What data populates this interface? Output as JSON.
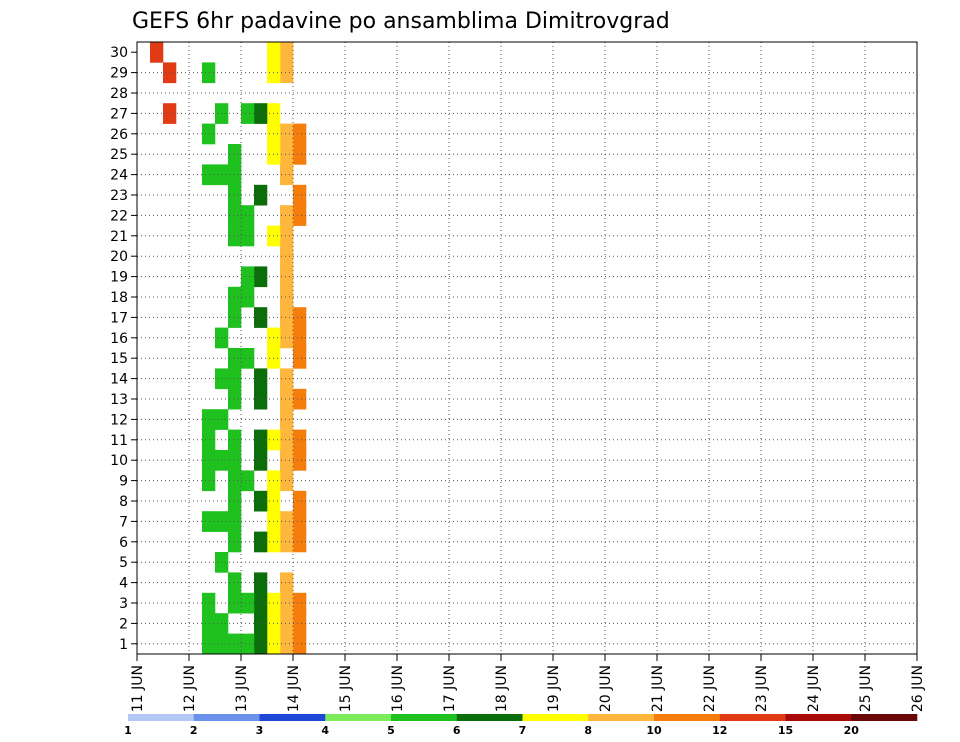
{
  "chart_data": {
    "type": "heatmap",
    "title": "GEFS 6hr padavine po ansamblima Dimitrovgrad",
    "xlabel": "",
    "ylabel": "",
    "x_ticks": [
      "11 JUN",
      "12 JUN",
      "13 JUN",
      "14 JUN",
      "15 JUN",
      "16 JUN",
      "17 JUN",
      "18 JUN",
      "19 JUN",
      "20 JUN",
      "21 JUN",
      "22 JUN",
      "23 JUN",
      "24 JUN",
      "25 JUN",
      "26 JUN"
    ],
    "y_ticks": [
      "1",
      "2",
      "3",
      "4",
      "5",
      "6",
      "7",
      "8",
      "9",
      "10",
      "11",
      "12",
      "13",
      "14",
      "15",
      "16",
      "17",
      "18",
      "19",
      "20",
      "21",
      "22",
      "23",
      "24",
      "25",
      "26",
      "27",
      "28",
      "29",
      "30"
    ],
    "xlim": [
      0,
      60
    ],
    "ylim": [
      0.5,
      30.5
    ],
    "grid": true,
    "colorbar": {
      "labels": [
        "1",
        "2",
        "3",
        "4",
        "5",
        "6",
        "7",
        "8",
        "10",
        "12",
        "15",
        "20"
      ],
      "colors": [
        "#b3c8f4",
        "#6b91ea",
        "#1e47d7",
        "#7ced5a",
        "#1fc11f",
        "#0b6e0b",
        "#ffff00",
        "#ffb63c",
        "#f47d0b",
        "#e13b16",
        "#a80a0a",
        "#6a0808"
      ]
    },
    "cells": [
      [
        1,
        30,
        9
      ],
      [
        2,
        29,
        9
      ],
      [
        2,
        27,
        9
      ],
      [
        12,
        26,
        8
      ],
      [
        12,
        25,
        8
      ],
      [
        12,
        23,
        8
      ],
      [
        12,
        22,
        8
      ],
      [
        12,
        17,
        8
      ],
      [
        12,
        16,
        8
      ],
      [
        12,
        15,
        8
      ],
      [
        12,
        13,
        8
      ],
      [
        12,
        11,
        8
      ],
      [
        12,
        10,
        8
      ],
      [
        12,
        8,
        8
      ],
      [
        12,
        7,
        8
      ],
      [
        12,
        6,
        8
      ],
      [
        12,
        3,
        8
      ],
      [
        12,
        2,
        8
      ],
      [
        12,
        1,
        8
      ],
      [
        11,
        30,
        7
      ],
      [
        11,
        29,
        7
      ],
      [
        11,
        26,
        7
      ],
      [
        11,
        25,
        7
      ],
      [
        11,
        24,
        7
      ],
      [
        11,
        22,
        7
      ],
      [
        11,
        21,
        7
      ],
      [
        11,
        20,
        7
      ],
      [
        11,
        19,
        7
      ],
      [
        11,
        18,
        7
      ],
      [
        11,
        17,
        7
      ],
      [
        11,
        16,
        7
      ],
      [
        11,
        14,
        7
      ],
      [
        11,
        13,
        7
      ],
      [
        11,
        12,
        7
      ],
      [
        11,
        11,
        7
      ],
      [
        11,
        10,
        7
      ],
      [
        11,
        9,
        7
      ],
      [
        11,
        7,
        7
      ],
      [
        11,
        6,
        7
      ],
      [
        11,
        4,
        7
      ],
      [
        11,
        3,
        7
      ],
      [
        11,
        2,
        7
      ],
      [
        11,
        1,
        7
      ],
      [
        10,
        30,
        6
      ],
      [
        10,
        29,
        6
      ],
      [
        10,
        27,
        6
      ],
      [
        10,
        26,
        6
      ],
      [
        10,
        25,
        6
      ],
      [
        10,
        21,
        6
      ],
      [
        10,
        16,
        6
      ],
      [
        10,
        15,
        6
      ],
      [
        10,
        11,
        6
      ],
      [
        10,
        9,
        6
      ],
      [
        10,
        8,
        6
      ],
      [
        10,
        7,
        6
      ],
      [
        10,
        6,
        6
      ],
      [
        10,
        3,
        6
      ],
      [
        10,
        2,
        6
      ],
      [
        10,
        1,
        6
      ],
      [
        9,
        27,
        5
      ],
      [
        9,
        23,
        5
      ],
      [
        9,
        19,
        5
      ],
      [
        9,
        17,
        5
      ],
      [
        9,
        14,
        5
      ],
      [
        9,
        13,
        5
      ],
      [
        9,
        11,
        5
      ],
      [
        9,
        10,
        5
      ],
      [
        9,
        8,
        5
      ],
      [
        9,
        6,
        5
      ],
      [
        9,
        4,
        5
      ],
      [
        9,
        3,
        5
      ],
      [
        9,
        2,
        5
      ],
      [
        9,
        1,
        5
      ],
      [
        8,
        27,
        4
      ],
      [
        8,
        22,
        4
      ],
      [
        8,
        21,
        4
      ],
      [
        8,
        19,
        4
      ],
      [
        8,
        18,
        4
      ],
      [
        8,
        15,
        4
      ],
      [
        8,
        9,
        4
      ],
      [
        8,
        3,
        4
      ],
      [
        8,
        1,
        4
      ],
      [
        7,
        25,
        4
      ],
      [
        7,
        24,
        4
      ],
      [
        7,
        23,
        4
      ],
      [
        7,
        22,
        4
      ],
      [
        7,
        21,
        4
      ],
      [
        7,
        18,
        4
      ],
      [
        7,
        17,
        4
      ],
      [
        7,
        15,
        4
      ],
      [
        7,
        14,
        4
      ],
      [
        7,
        13,
        4
      ],
      [
        7,
        11,
        4
      ],
      [
        7,
        10,
        4
      ],
      [
        7,
        9,
        4
      ],
      [
        7,
        8,
        4
      ],
      [
        7,
        7,
        4
      ],
      [
        7,
        6,
        4
      ],
      [
        7,
        4,
        4
      ],
      [
        7,
        3,
        4
      ],
      [
        7,
        1,
        4
      ],
      [
        6,
        27,
        4
      ],
      [
        6,
        24,
        4
      ],
      [
        6,
        16,
        4
      ],
      [
        6,
        14,
        4
      ],
      [
        6,
        12,
        4
      ],
      [
        6,
        10,
        4
      ],
      [
        6,
        7,
        4
      ],
      [
        6,
        5,
        4
      ],
      [
        6,
        2,
        4
      ],
      [
        6,
        1,
        4
      ],
      [
        5,
        29,
        4
      ],
      [
        5,
        26,
        4
      ],
      [
        5,
        24,
        4
      ],
      [
        5,
        12,
        4
      ],
      [
        5,
        11,
        4
      ],
      [
        5,
        10,
        4
      ],
      [
        5,
        9,
        4
      ],
      [
        5,
        7,
        4
      ],
      [
        5,
        3,
        4
      ],
      [
        5,
        2,
        4
      ],
      [
        5,
        1,
        4
      ]
    ]
  }
}
